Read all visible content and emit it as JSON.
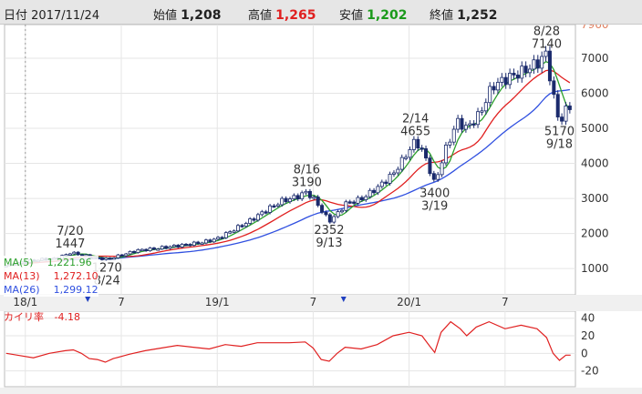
{
  "header": {
    "date_label": "日付",
    "date": "2017/11/24",
    "open_label": "始値",
    "open": "1,208",
    "high_label": "高値",
    "high": "1,265",
    "low_label": "安値",
    "low": "1,202",
    "close_label": "終値",
    "close": "1,252"
  },
  "legend": [
    {
      "label": "MA(5)",
      "value": "1,221.96",
      "color": "#2ca02c"
    },
    {
      "label": "MA(13)",
      "value": "1,272.10",
      "color": "#e02020"
    },
    {
      "label": "MA(26)",
      "value": "1,299.12",
      "color": "#3050e0"
    }
  ],
  "indicator": {
    "label": "カイリ率",
    "value": "-4.18",
    "color": "#e02020"
  },
  "colors": {
    "up": "#ffffff",
    "down": "#1a2a6c",
    "ma5": "#2ca02c",
    "ma13": "#e02020",
    "ma26": "#3050e0",
    "kairi": "#e02020",
    "grid": "#e5e5e5",
    "down_marker": "#2040c0"
  },
  "chart_data": [
    {
      "type": "candlestick",
      "y_ticks": [
        "7000",
        "6000",
        "5000",
        "4000",
        "3000",
        "2000",
        "1000"
      ],
      "y_top_label": "7960",
      "ylim": [
        250,
        7960
      ],
      "x_ticks": [
        {
          "month": 0,
          "label": "18/1"
        },
        {
          "month": 6,
          "label": "7"
        },
        {
          "month": 12,
          "label": "19/1"
        },
        {
          "month": 18,
          "label": "7"
        },
        {
          "month": 24,
          "label": "20/1"
        },
        {
          "month": 30,
          "label": "7"
        }
      ],
      "x_range_months": [
        -1.3,
        34.4
      ],
      "down_markers_months": [
        3.9,
        19.9
      ],
      "price_path": [
        [
          -1.2,
          1080
        ],
        [
          0,
          1200
        ],
        [
          1,
          1260
        ],
        [
          2,
          1290
        ],
        [
          2.8,
          1447
        ],
        [
          3.5,
          1400
        ],
        [
          4.2,
          1310
        ],
        [
          5.1,
          1270
        ],
        [
          6,
          1380
        ],
        [
          7,
          1520
        ],
        [
          8,
          1560
        ],
        [
          9,
          1620
        ],
        [
          10,
          1680
        ],
        [
          11,
          1740
        ],
        [
          12,
          1850
        ],
        [
          13,
          2100
        ],
        [
          14,
          2350
        ],
        [
          15,
          2650
        ],
        [
          16,
          2920
        ],
        [
          17,
          3050
        ],
        [
          17.6,
          3190
        ],
        [
          18.2,
          2900
        ],
        [
          18.6,
          2600
        ],
        [
          19,
          2352
        ],
        [
          19.6,
          2600
        ],
        [
          20,
          2850
        ],
        [
          21,
          2980
        ],
        [
          22,
          3300
        ],
        [
          23,
          3700
        ],
        [
          23.6,
          4100
        ],
        [
          24.4,
          4655
        ],
        [
          24.9,
          4300
        ],
        [
          25.3,
          3800
        ],
        [
          25.6,
          3400
        ],
        [
          26.2,
          4300
        ],
        [
          27,
          5200
        ],
        [
          27.6,
          5000
        ],
        [
          28.4,
          5400
        ],
        [
          29.2,
          6200
        ],
        [
          30,
          6400
        ],
        [
          31,
          6600
        ],
        [
          32,
          6850
        ],
        [
          32.6,
          7140
        ],
        [
          32.9,
          6200
        ],
        [
          33.2,
          5500
        ],
        [
          33.4,
          5170
        ],
        [
          33.8,
          5500
        ],
        [
          34.1,
          5650
        ]
      ],
      "annotations": [
        {
          "text": [
            "7/20",
            "1447"
          ],
          "month": 2.8,
          "price": 1447,
          "pos": "above"
        },
        {
          "text": [
            "1270",
            "8/24"
          ],
          "month": 5.1,
          "price": 1270,
          "pos": "below"
        },
        {
          "text": [
            "8/16",
            "3190"
          ],
          "month": 17.6,
          "price": 3190,
          "pos": "above"
        },
        {
          "text": [
            "2352",
            "9/13"
          ],
          "month": 19,
          "price": 2352,
          "pos": "below"
        },
        {
          "text": [
            "2/14",
            "4655"
          ],
          "month": 24.4,
          "price": 4655,
          "pos": "above"
        },
        {
          "text": [
            "3400",
            "3/19"
          ],
          "month": 25.6,
          "price": 3400,
          "pos": "below"
        },
        {
          "text": [
            "8/28",
            "7140"
          ],
          "month": 32.6,
          "price": 7140,
          "pos": "above"
        },
        {
          "text": [
            "5170",
            "9/18"
          ],
          "month": 33.4,
          "price": 5170,
          "pos": "below"
        }
      ]
    },
    {
      "type": "line",
      "y_ticks": [
        "40",
        "20",
        "0",
        "-20"
      ],
      "ylim": [
        -38,
        48
      ],
      "kairi_path": [
        [
          -1.2,
          0
        ],
        [
          -0.5,
          -2
        ],
        [
          0.5,
          -5
        ],
        [
          1.5,
          0
        ],
        [
          2.5,
          3
        ],
        [
          3,
          4
        ],
        [
          3.5,
          0
        ],
        [
          4,
          -6
        ],
        [
          4.5,
          -7
        ],
        [
          5,
          -10
        ],
        [
          5.5,
          -6
        ],
        [
          6.5,
          -1
        ],
        [
          7.5,
          3
        ],
        [
          8.5,
          6
        ],
        [
          9.5,
          9
        ],
        [
          10.5,
          7
        ],
        [
          11.5,
          5
        ],
        [
          12.5,
          10
        ],
        [
          13.5,
          8
        ],
        [
          14.5,
          12
        ],
        [
          15.5,
          12
        ],
        [
          16.5,
          12
        ],
        [
          17.5,
          13
        ],
        [
          18,
          6
        ],
        [
          18.5,
          -7
        ],
        [
          19,
          -9
        ],
        [
          19.5,
          0
        ],
        [
          20,
          7
        ],
        [
          21,
          5
        ],
        [
          22,
          10
        ],
        [
          23,
          20
        ],
        [
          24,
          24
        ],
        [
          24.8,
          20
        ],
        [
          25.3,
          8
        ],
        [
          25.6,
          1
        ],
        [
          26,
          24
        ],
        [
          26.6,
          36
        ],
        [
          27.2,
          28
        ],
        [
          27.6,
          20
        ],
        [
          28.2,
          30
        ],
        [
          29,
          36
        ],
        [
          30,
          28
        ],
        [
          31,
          32
        ],
        [
          32,
          28
        ],
        [
          32.6,
          18
        ],
        [
          33,
          0
        ],
        [
          33.4,
          -8
        ],
        [
          33.8,
          -2
        ],
        [
          34.1,
          -2
        ]
      ]
    }
  ]
}
